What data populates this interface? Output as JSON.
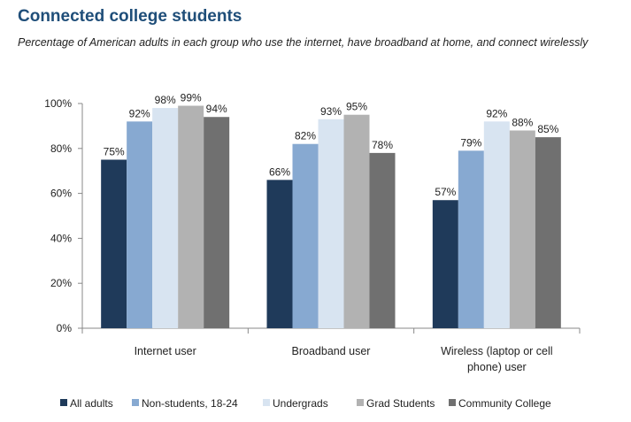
{
  "title": "Connected college students",
  "subtitle": "Percentage of American adults in each group who use the internet, have broadband at home, and connect wirelessly",
  "chart_data": {
    "type": "bar",
    "title": "Connected college students",
    "subtitle": "Percentage of American adults in each group who use the internet, have broadband at home, and connect wirelessly",
    "categories": [
      "Internet user",
      "Broadband user",
      "Wireless (laptop or cell phone) user"
    ],
    "category_lines": [
      [
        "Internet user"
      ],
      [
        "Broadband user"
      ],
      [
        "Wireless (laptop or cell",
        "phone) user"
      ]
    ],
    "series": [
      {
        "name": "All adults",
        "color": "#1f3a5a",
        "values": [
          75,
          66,
          57
        ]
      },
      {
        "name": "Non-students, 18-24",
        "color": "#87a9d1",
        "values": [
          92,
          82,
          79
        ]
      },
      {
        "name": "Undergrads",
        "color": "#d8e4f1",
        "values": [
          98,
          93,
          92
        ]
      },
      {
        "name": "Grad Students",
        "color": "#b2b2b2",
        "values": [
          99,
          95,
          88
        ]
      },
      {
        "name": "Community College",
        "color": "#707070",
        "values": [
          94,
          78,
          85
        ]
      }
    ],
    "ylim": [
      0,
      100
    ],
    "yticks": [
      "0%",
      "20%",
      "40%",
      "60%",
      "80%",
      "100%"
    ],
    "value_suffix": "%",
    "legend_position": "bottom",
    "grid": false
  }
}
